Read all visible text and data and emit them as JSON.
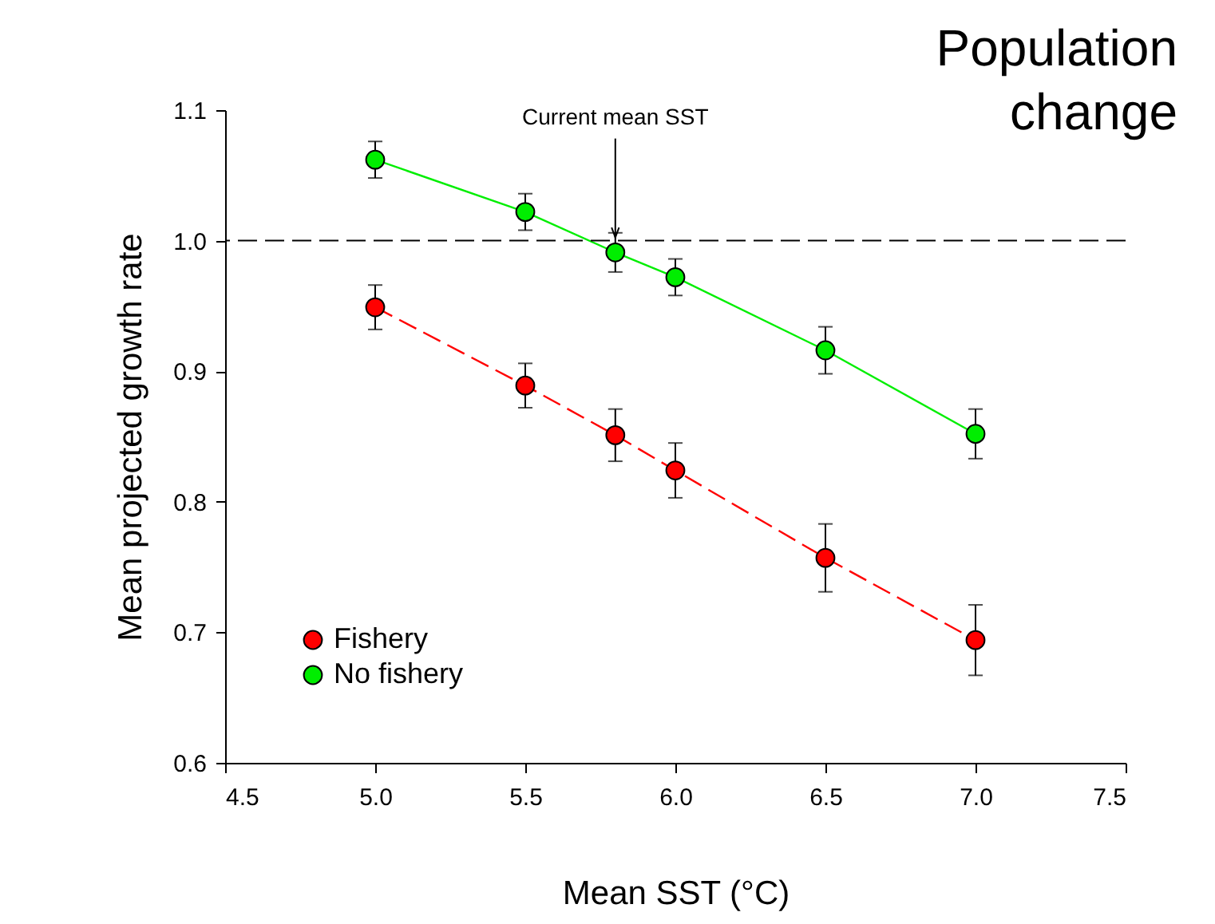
{
  "chart_data": {
    "type": "line",
    "title": "Population change",
    "xlabel": "Mean SST (°C)",
    "ylabel": "Mean projected growth rate",
    "xlim": [
      4.5,
      7.5
    ],
    "xticks": [
      {
        "value": 4.5,
        "label": "4.5"
      },
      {
        "value": 5,
        "label": "5.0"
      },
      {
        "value": 5.5,
        "label": "5.5"
      },
      {
        "value": 6,
        "label": "6.0"
      },
      {
        "value": 6.5,
        "label": "6.5"
      },
      {
        "value": 7,
        "label": "7.0"
      },
      {
        "value": 7.5,
        "label": "7.5"
      }
    ],
    "ylim": [
      0.6,
      1.1
    ],
    "yticks": [
      {
        "value": 0.6,
        "label": "0.6"
      },
      {
        "value": 0.7,
        "label": "0.7"
      },
      {
        "value": 0.8,
        "label": "0.8"
      },
      {
        "value": 0.9,
        "label": "0.9"
      },
      {
        "value": 1,
        "label": "1.0"
      },
      {
        "value": 1.1,
        "label": "1.1"
      }
    ],
    "x": [
      5.0,
      5.5,
      5.8,
      6.0,
      6.5,
      7.0
    ],
    "series": [
      {
        "name": "Fishery",
        "color": "#ff0000",
        "line_style": "dashed",
        "values": [
          0.949,
          0.889,
          0.851,
          0.824,
          0.757,
          0.694
        ],
        "errors": [
          0.017,
          0.017,
          0.02,
          0.021,
          0.026,
          0.027
        ]
      },
      {
        "name": "No fishery",
        "color": "#00ee00",
        "line_style": "solid",
        "values": [
          1.062,
          1.022,
          0.991,
          0.972,
          0.916,
          0.852
        ],
        "errors": [
          0.014,
          0.014,
          0.015,
          0.014,
          0.018,
          0.019
        ]
      }
    ],
    "ref_lines": [
      {
        "axis": "y",
        "value": 1.0,
        "color": "#000000",
        "line_style": "dashed"
      }
    ],
    "annotations": [
      {
        "text": "Current mean SST",
        "x": 5.8,
        "y": 1.0
      }
    ],
    "marker": "circle",
    "grid": false,
    "legend": "bottom left"
  }
}
